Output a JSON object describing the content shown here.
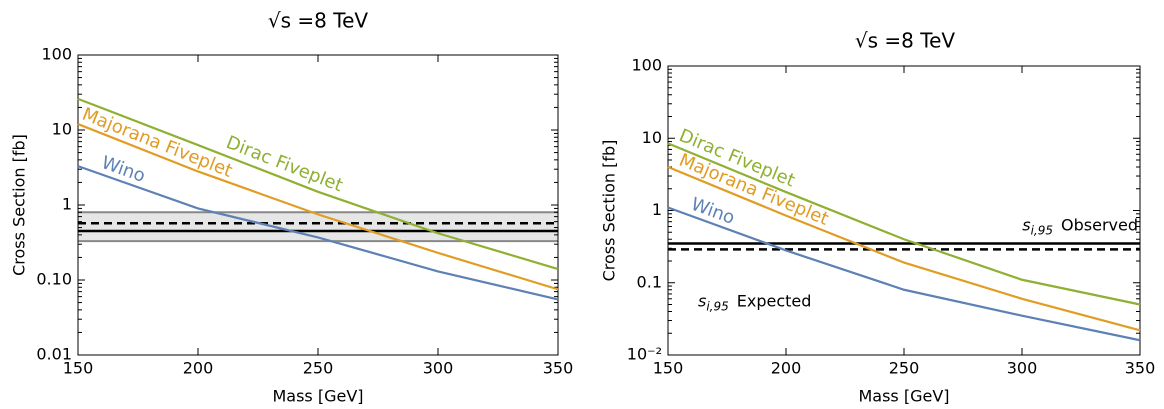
{
  "chart_data": [
    {
      "type": "line",
      "title": "√s =8 TeV",
      "x_label": "Mass [GeV]",
      "y_label": "Cross Section [fb]",
      "log_y": true,
      "x": [
        150,
        200,
        250,
        300,
        350
      ],
      "xlim": [
        150,
        350
      ],
      "xticks": [
        150,
        200,
        250,
        300,
        350
      ],
      "ylim": [
        0.01,
        100
      ],
      "yticks": [
        100,
        10,
        1,
        {
          "value": 0.1,
          "label": "0.10"
        },
        0.01
      ],
      "series": [
        {
          "name": "Dirac Fiveplet",
          "color": "#8fb032",
          "values": [
            26,
            6.3,
            1.5,
            0.42,
            0.14
          ]
        },
        {
          "name": "Majorana Fiveplet",
          "color": "#e19c24",
          "values": [
            12,
            2.8,
            0.75,
            0.23,
            0.075
          ]
        },
        {
          "name": "Wino",
          "color": "#5e81b5",
          "values": [
            3.3,
            0.9,
            0.37,
            0.13,
            0.055
          ]
        }
      ],
      "band": [
        0.33,
        0.8
      ],
      "hlines": [
        {
          "value": 0.57,
          "dash": true
        },
        {
          "value": 0.45,
          "dash": false
        }
      ]
    },
    {
      "type": "line",
      "title": "√s =8 TeV",
      "x_label": "Mass [GeV]",
      "y_label": "Cross Section [fb]",
      "log_y": true,
      "x": [
        150,
        200,
        250,
        300,
        350
      ],
      "xlim": [
        150,
        350
      ],
      "xticks": [
        150,
        200,
        250,
        300,
        350
      ],
      "ylim": [
        0.01,
        100
      ],
      "yticks": [
        100,
        10,
        1,
        0.1,
        {
          "value": 0.01,
          "label": "10⁻²"
        }
      ],
      "series": [
        {
          "name": "Dirac Fiveplet",
          "color": "#8fb032",
          "values": [
            8.5,
            1.8,
            0.4,
            0.11,
            0.05
          ]
        },
        {
          "name": "Majorana Fiveplet",
          "color": "#e19c24",
          "values": [
            4,
            0.85,
            0.19,
            0.06,
            0.022
          ]
        },
        {
          "name": "Wino",
          "color": "#5e81b5",
          "values": [
            1.1,
            0.28,
            0.08,
            0.035,
            0.016
          ]
        }
      ],
      "hlines": [
        {
          "value": 0.35,
          "dash": false,
          "label": {
            "symbol": "s",
            "sub": "i,95",
            "text": "Observed"
          }
        },
        {
          "value": 0.29,
          "dash": true,
          "label": {
            "symbol": "s",
            "sub": "i,95",
            "text": "Expected"
          }
        }
      ]
    }
  ]
}
